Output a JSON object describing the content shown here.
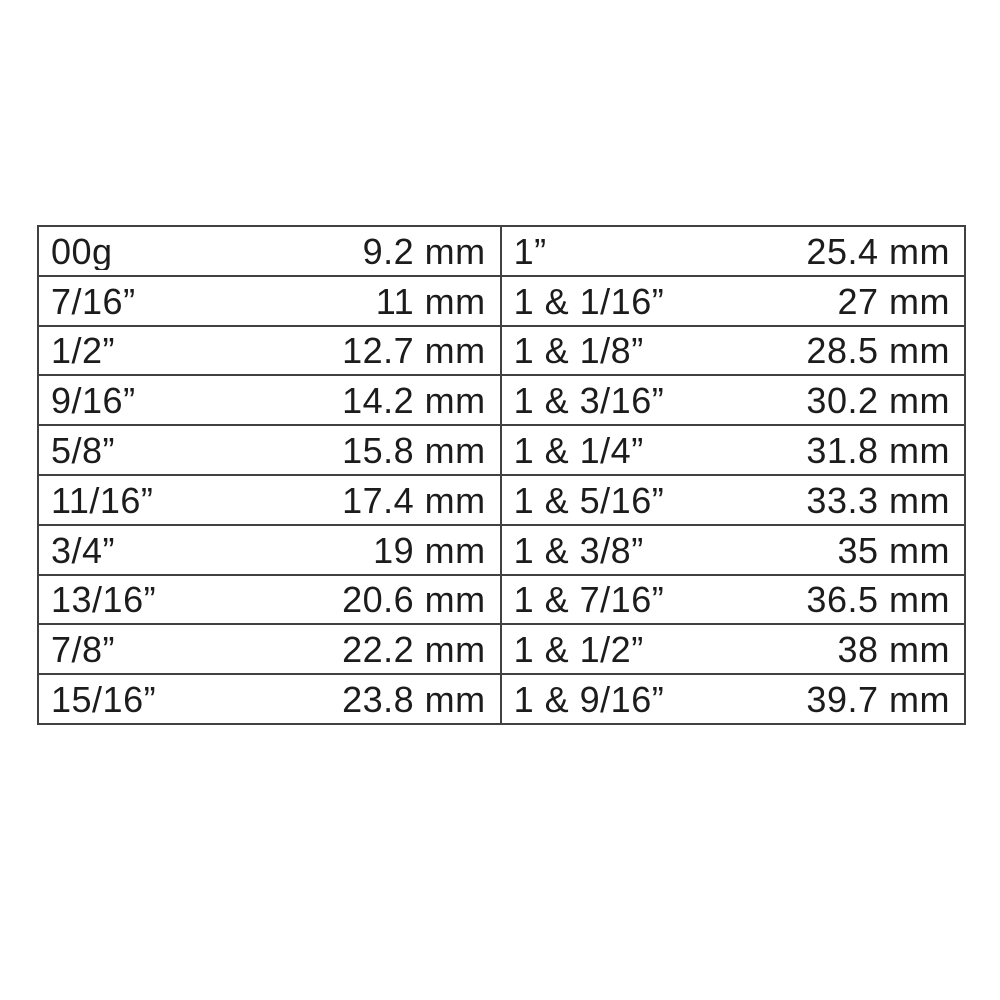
{
  "colors": {
    "border": "#414141",
    "text": "#1c1c1c",
    "background": "#ffffff"
  },
  "table": {
    "rows": [
      {
        "left_label": "00g",
        "left_value": "9.2 mm",
        "right_label": "1”",
        "right_value": "25.4 mm"
      },
      {
        "left_label": "7/16”",
        "left_value": "11 mm",
        "right_label": "1 & 1/16”",
        "right_value": "27 mm"
      },
      {
        "left_label": "1/2”",
        "left_value": "12.7 mm",
        "right_label": "1 & 1/8”",
        "right_value": "28.5 mm"
      },
      {
        "left_label": "9/16”",
        "left_value": "14.2 mm",
        "right_label": "1 & 3/16”",
        "right_value": "30.2 mm"
      },
      {
        "left_label": "5/8”",
        "left_value": "15.8 mm",
        "right_label": "1 & 1/4”",
        "right_value": "31.8 mm"
      },
      {
        "left_label": "11/16”",
        "left_value": "17.4 mm",
        "right_label": "1 & 5/16”",
        "right_value": "33.3 mm"
      },
      {
        "left_label": "3/4”",
        "left_value": "19 mm",
        "right_label": "1 & 3/8”",
        "right_value": "35 mm"
      },
      {
        "left_label": "13/16”",
        "left_value": "20.6 mm",
        "right_label": "1 & 7/16”",
        "right_value": "36.5 mm"
      },
      {
        "left_label": "7/8”",
        "left_value": "22.2 mm",
        "right_label": "1 & 1/2”",
        "right_value": "38 mm"
      },
      {
        "left_label": "15/16”",
        "left_value": "23.8 mm",
        "right_label": "1 & 9/16”",
        "right_value": "39.7 mm"
      }
    ]
  }
}
